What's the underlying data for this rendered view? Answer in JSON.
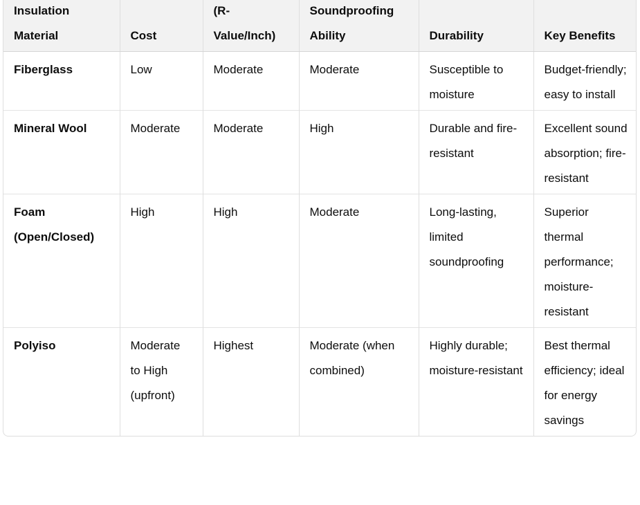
{
  "table": {
    "header": [
      "Insulation Material",
      "Cost",
      "(R-Value/Inch)",
      "Soundproofing Ability",
      "Durability",
      "Key Benefits"
    ],
    "rows": [
      [
        "Fiberglass",
        "Low",
        "Moderate",
        "Moderate",
        "Susceptible to moisture",
        "Budget-friendly; easy to install"
      ],
      [
        "Mineral Wool",
        "Moderate",
        "Moderate",
        "High",
        "Durable and fire-resistant",
        "Excellent sound absorption; fire-resistant"
      ],
      [
        "Foam (Open/Closed)",
        "High",
        "High",
        "Moderate",
        "Long-lasting, limited soundproofing",
        "Superior thermal performance; moisture-resistant"
      ],
      [
        "Polyiso",
        "Moderate to High (upfront)",
        "Highest",
        "Moderate (when combined)",
        "Highly durable; moisture-resistant",
        "Best thermal efficiency; ideal for energy savings"
      ]
    ]
  }
}
